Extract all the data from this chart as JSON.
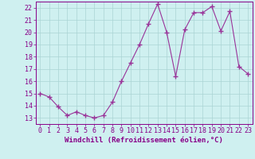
{
  "x": [
    0,
    1,
    2,
    3,
    4,
    5,
    6,
    7,
    8,
    9,
    10,
    11,
    12,
    13,
    14,
    15,
    16,
    17,
    18,
    19,
    20,
    21,
    22,
    23
  ],
  "y": [
    15.0,
    14.7,
    13.9,
    13.2,
    13.5,
    13.2,
    13.0,
    13.2,
    14.3,
    16.0,
    17.5,
    19.0,
    20.7,
    22.3,
    20.0,
    16.4,
    20.2,
    21.6,
    21.6,
    22.1,
    20.1,
    21.7,
    17.2,
    16.6
  ],
  "line_color": "#993399",
  "marker": "+",
  "marker_size": 4,
  "bg_color": "#cff0f0",
  "grid_color": "#aad4d4",
  "xlabel": "Windchill (Refroidissement éolien,°C)",
  "xlim": [
    -0.5,
    23.5
  ],
  "ylim": [
    12.5,
    22.5
  ],
  "yticks": [
    13,
    14,
    15,
    16,
    17,
    18,
    19,
    20,
    21,
    22
  ],
  "xticks": [
    0,
    1,
    2,
    3,
    4,
    5,
    6,
    7,
    8,
    9,
    10,
    11,
    12,
    13,
    14,
    15,
    16,
    17,
    18,
    19,
    20,
    21,
    22,
    23
  ],
  "label_color": "#880088",
  "label_fontsize": 6.5,
  "tick_fontsize": 6.0
}
